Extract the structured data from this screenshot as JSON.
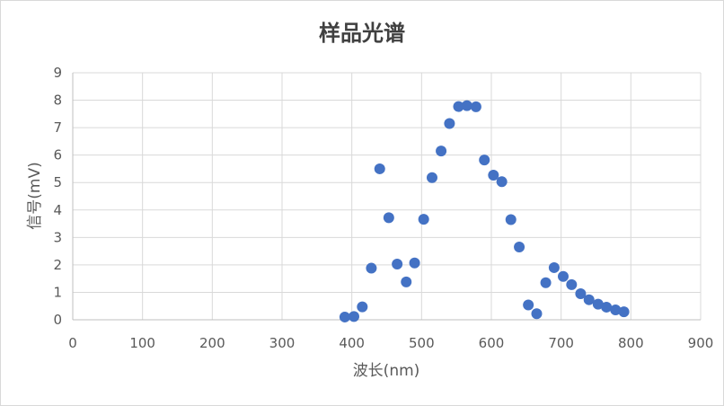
{
  "chart_data": {
    "type": "scatter",
    "title": "样品光谱",
    "xlabel": "波长(nm)",
    "ylabel": "信号(mV)",
    "xlim": [
      0,
      900
    ],
    "ylim": [
      0,
      9
    ],
    "xticks": [
      0,
      100,
      200,
      300,
      400,
      500,
      600,
      700,
      800,
      900
    ],
    "yticks": [
      0,
      1,
      2,
      3,
      4,
      5,
      6,
      7,
      8,
      9
    ],
    "grid": true,
    "legend": "none",
    "marker_color": "#4472c4",
    "series": [
      {
        "points": [
          {
            "x": 390,
            "y": 0.1
          },
          {
            "x": 403,
            "y": 0.12
          },
          {
            "x": 415,
            "y": 0.47
          },
          {
            "x": 428,
            "y": 1.88
          },
          {
            "x": 440,
            "y": 5.5
          },
          {
            "x": 453,
            "y": 3.72
          },
          {
            "x": 465,
            "y": 2.03
          },
          {
            "x": 478,
            "y": 1.38
          },
          {
            "x": 490,
            "y": 2.07
          },
          {
            "x": 503,
            "y": 3.66
          },
          {
            "x": 515,
            "y": 5.18
          },
          {
            "x": 528,
            "y": 6.15
          },
          {
            "x": 540,
            "y": 7.15
          },
          {
            "x": 553,
            "y": 7.77
          },
          {
            "x": 565,
            "y": 7.8
          },
          {
            "x": 578,
            "y": 7.76
          },
          {
            "x": 590,
            "y": 5.82
          },
          {
            "x": 603,
            "y": 5.27
          },
          {
            "x": 615,
            "y": 5.03
          },
          {
            "x": 628,
            "y": 3.65
          },
          {
            "x": 640,
            "y": 2.65
          },
          {
            "x": 653,
            "y": 0.54
          },
          {
            "x": 665,
            "y": 0.22
          },
          {
            "x": 678,
            "y": 1.35
          },
          {
            "x": 690,
            "y": 1.9
          },
          {
            "x": 703,
            "y": 1.58
          },
          {
            "x": 715,
            "y": 1.28
          },
          {
            "x": 728,
            "y": 0.95
          },
          {
            "x": 740,
            "y": 0.73
          },
          {
            "x": 753,
            "y": 0.57
          },
          {
            "x": 765,
            "y": 0.46
          },
          {
            "x": 778,
            "y": 0.36
          },
          {
            "x": 790,
            "y": 0.29
          }
        ]
      }
    ]
  }
}
